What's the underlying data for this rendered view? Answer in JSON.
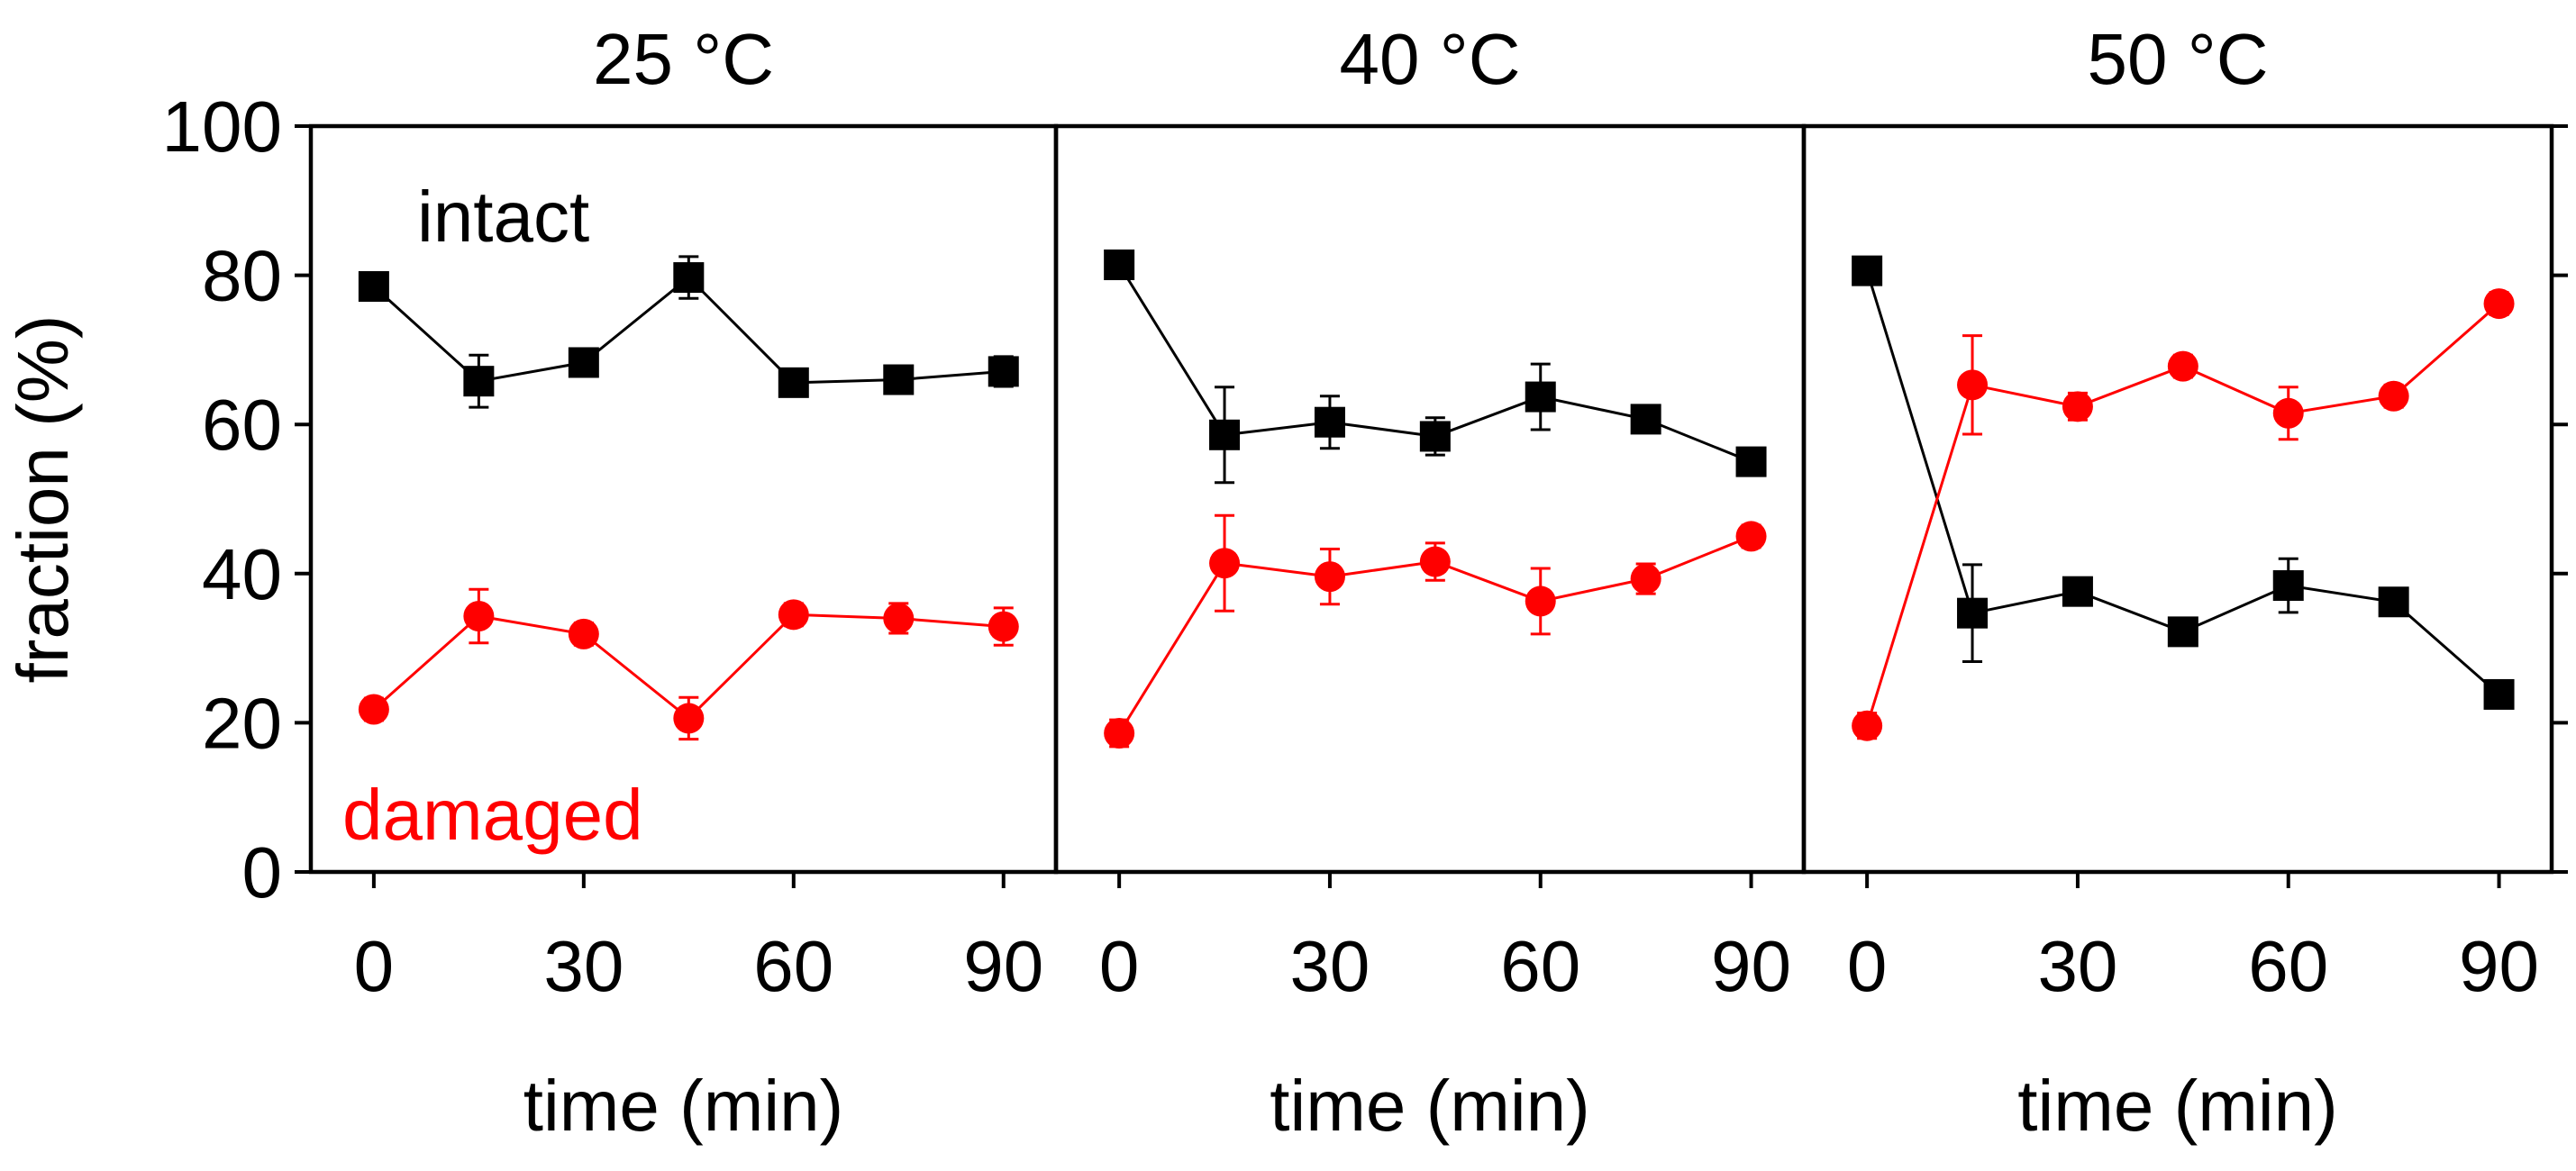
{
  "chart_data": {
    "type": "line",
    "ylabel": "fraction (%)",
    "ylim": [
      0,
      100
    ],
    "yticks": [
      0,
      20,
      40,
      60,
      80,
      100
    ],
    "xlim": [
      -9,
      97.5
    ],
    "xticks": [
      0,
      30,
      60,
      90
    ],
    "annotations": {
      "intact": "intact",
      "damaged": "damaged"
    },
    "colors": {
      "intact": "#000000",
      "damaged": "#ff0000"
    },
    "panels": [
      {
        "title": "25 °C",
        "xlabel": "time (min)",
        "x": [
          0,
          15,
          30,
          45,
          60,
          75,
          90
        ],
        "series": [
          {
            "name": "intact",
            "marker": "square",
            "values": [
              78.5,
              65.8,
              68.3,
              79.7,
              65.6,
              66.0,
              67.1
            ],
            "errors": [
              1.5,
              3.5,
              1.5,
              2.8,
              1.5,
              1.5,
              2.0
            ]
          },
          {
            "name": "damaged",
            "marker": "circle",
            "values": [
              21.8,
              34.3,
              31.9,
              20.6,
              34.5,
              34.0,
              32.9
            ],
            "errors": [
              1.5,
              3.6,
              1.5,
              2.8,
              1.5,
              2.0,
              2.5
            ]
          }
        ]
      },
      {
        "title": "40 °C",
        "xlabel": "time (min)",
        "x": [
          0,
          15,
          30,
          45,
          60,
          75,
          90
        ],
        "series": [
          {
            "name": "intact",
            "marker": "square",
            "values": [
              81.4,
              58.6,
              60.3,
              58.4,
              63.7,
              60.7,
              55.0
            ],
            "errors": [
              1.5,
              6.4,
              3.5,
              2.5,
              4.4,
              1.5,
              1.5
            ]
          },
          {
            "name": "damaged",
            "marker": "circle",
            "values": [
              18.6,
              41.4,
              39.6,
              41.6,
              36.3,
              39.3,
              45.0
            ],
            "errors": [
              1.8,
              6.4,
              3.7,
              2.5,
              4.4,
              2.0,
              1.5
            ]
          }
        ]
      },
      {
        "title": "50 °C",
        "xlabel": "time (min)",
        "x": [
          0,
          15,
          30,
          45,
          60,
          75,
          90
        ],
        "series": [
          {
            "name": "intact",
            "marker": "square",
            "values": [
              80.6,
              34.7,
              37.6,
              32.2,
              38.4,
              36.2,
              23.8
            ],
            "errors": [
              1.5,
              6.5,
              1.8,
              1.5,
              3.6,
              1.5,
              1.5
            ]
          },
          {
            "name": "damaged",
            "marker": "circle",
            "values": [
              19.6,
              65.3,
              62.4,
              67.8,
              61.5,
              63.8,
              76.2
            ],
            "errors": [
              1.7,
              6.6,
              1.8,
              1.5,
              3.5,
              1.5,
              1.5
            ]
          }
        ]
      }
    ]
  }
}
